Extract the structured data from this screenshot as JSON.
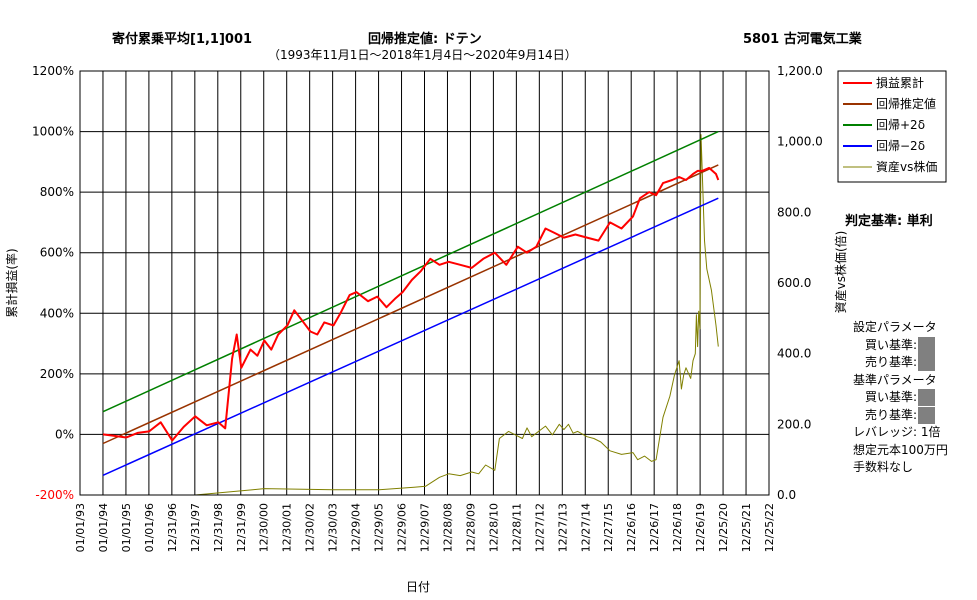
{
  "header": {
    "strategy": "寄付累乗平均[1,1]001",
    "regression_label": "回帰推定値: ドテン",
    "stock": "5801 古河電気工業",
    "period": "（1993年11月1日～2018年1月4日～2020年9月14日）"
  },
  "sidebar": {
    "judgement": "判定基準: 単利",
    "settings_title": "設定パラメータ",
    "buy_label": "買い基準:",
    "sell_label": "売り基準:",
    "base_title": "基準パラメータ",
    "base_buy_label": "買い基準:",
    "base_sell_label": "売り基準:",
    "leverage": "レバレッジ: 1倍",
    "capital": "想定元本100万円",
    "fees": "手数料なし"
  },
  "colors": {
    "cum_pl": "#ff0000",
    "regression": "#993300",
    "plus2sigma": "#008000",
    "minus2sigma": "#0000ff",
    "asset_vs_price": "#808000",
    "neg_tick": "#ff0000"
  },
  "chart_data": {
    "type": "line",
    "xlabel": "日付",
    "ylabel_left": "累計損益(率)",
    "ylabel_right": "資産vs株価(倍)",
    "ylim_left": [
      -200,
      1200
    ],
    "ylim_right": [
      0,
      1200
    ],
    "x_range_years": [
      1993,
      2022.9
    ],
    "grid": true,
    "legend_position": "top-right",
    "y_ticks_left": [
      "1200%",
      "1000%",
      "800%",
      "600%",
      "400%",
      "200%",
      "0%",
      "-200%"
    ],
    "y_ticks_right": [
      "1,200.0",
      "1,000.0",
      "800.0",
      "600.0",
      "400.0",
      "200.0",
      "0.0"
    ],
    "x_ticks": [
      "01/01/93",
      "01/01/94",
      "01/01/95",
      "01/01/96",
      "12/31/96",
      "12/31/97",
      "12/31/98",
      "12/31/99",
      "12/30/00",
      "12/30/01",
      "12/30/02",
      "12/30/03",
      "12/29/04",
      "12/29/05",
      "12/29/06",
      "12/29/07",
      "12/28/08",
      "12/28/09",
      "12/28/10",
      "12/28/11",
      "12/27/12",
      "12/27/13",
      "12/27/14",
      "12/27/15",
      "12/26/16",
      "12/26/17",
      "12/26/18",
      "12/26/19",
      "12/25/20",
      "12/25/21",
      "12/25/22"
    ],
    "series": [
      {
        "name": "損益累計",
        "axis": "left",
        "x": [
          1994.0,
          1994.5,
          1995.0,
          1995.5,
          1996.0,
          1996.5,
          1997.0,
          1997.5,
          1998.0,
          1998.5,
          1999.0,
          1999.3,
          1999.6,
          1999.8,
          2000.0,
          2000.4,
          2000.7,
          2001.0,
          2001.3,
          2001.6,
          2002.0,
          2002.3,
          2002.6,
          2003.0,
          2003.3,
          2003.6,
          2004.0,
          2004.3,
          2004.7,
          2005.0,
          2005.5,
          2005.9,
          2006.3,
          2006.7,
          2007.0,
          2007.4,
          2007.8,
          2008.2,
          2008.6,
          2009.0,
          2009.5,
          2010.0,
          2010.5,
          2011.0,
          2011.5,
          2012.0,
          2012.4,
          2012.8,
          2013.2,
          2013.6,
          2014.0,
          2014.5,
          2015.0,
          2015.5,
          2016.0,
          2016.5,
          2017.0,
          2017.3,
          2017.7,
          2018.0,
          2018.3,
          2018.7,
          2019.0,
          2019.3,
          2019.6,
          2019.8,
          2020.0,
          2020.3,
          2020.6,
          2020.7
        ],
        "y": [
          0,
          -5,
          -10,
          5,
          10,
          40,
          -20,
          25,
          60,
          30,
          40,
          20,
          250,
          330,
          220,
          280,
          260,
          310,
          280,
          330,
          360,
          410,
          380,
          340,
          330,
          370,
          360,
          400,
          460,
          470,
          440,
          455,
          420,
          450,
          470,
          510,
          540,
          580,
          560,
          570,
          560,
          550,
          580,
          600,
          560,
          620,
          600,
          620,
          680,
          665,
          650,
          660,
          650,
          640,
          700,
          680,
          720,
          780,
          800,
          790,
          830,
          840,
          850,
          840,
          860,
          870,
          870,
          880,
          860,
          840
        ]
      },
      {
        "name": "回帰推定値",
        "axis": "left",
        "x": [
          1994.0,
          2020.7
        ],
        "y": [
          -30,
          890
        ]
      },
      {
        "name": "回帰+2δ",
        "axis": "left",
        "x": [
          1994.0,
          2020.7
        ],
        "y": [
          75,
          1000
        ]
      },
      {
        "name": "回帰−2δ",
        "axis": "left",
        "x": [
          1994.0,
          2020.7
        ],
        "y": [
          -135,
          780
        ]
      },
      {
        "name": "資産vs株価",
        "axis": "right",
        "x": [
          1994.0,
          1998.0,
          2000.5,
          2001.0,
          2004.0,
          2006.0,
          2007.5,
          2008.0,
          2008.6,
          2009.0,
          2009.5,
          2010.0,
          2010.3,
          2010.6,
          2011.0,
          2011.2,
          2011.6,
          2011.9,
          2012.2,
          2012.4,
          2012.6,
          2012.9,
          2013.2,
          2013.5,
          2013.8,
          2014.0,
          2014.2,
          2014.4,
          2014.6,
          2015.0,
          2015.3,
          2015.6,
          2016.0,
          2016.5,
          2017.0,
          2017.2,
          2017.5,
          2017.8,
          2018.0,
          2018.3,
          2018.6,
          2018.8,
          2019.0,
          2019.1,
          2019.2,
          2019.3,
          2019.5,
          2019.6,
          2019.7,
          2019.75,
          2019.8,
          2019.85,
          2019.9,
          2019.95,
          2020.0,
          2020.1,
          2020.2,
          2020.4,
          2020.6,
          2020.7
        ],
        "y": [
          0,
          0,
          15,
          18,
          15,
          15,
          22,
          25,
          50,
          60,
          55,
          65,
          60,
          85,
          70,
          160,
          180,
          170,
          160,
          190,
          165,
          180,
          195,
          170,
          200,
          185,
          200,
          175,
          180,
          165,
          160,
          150,
          125,
          115,
          120,
          100,
          110,
          95,
          100,
          220,
          280,
          340,
          380,
          300,
          340,
          360,
          330,
          380,
          400,
          510,
          420,
          520,
          470,
          1020,
          920,
          720,
          640,
          580,
          480,
          420
        ]
      }
    ]
  }
}
